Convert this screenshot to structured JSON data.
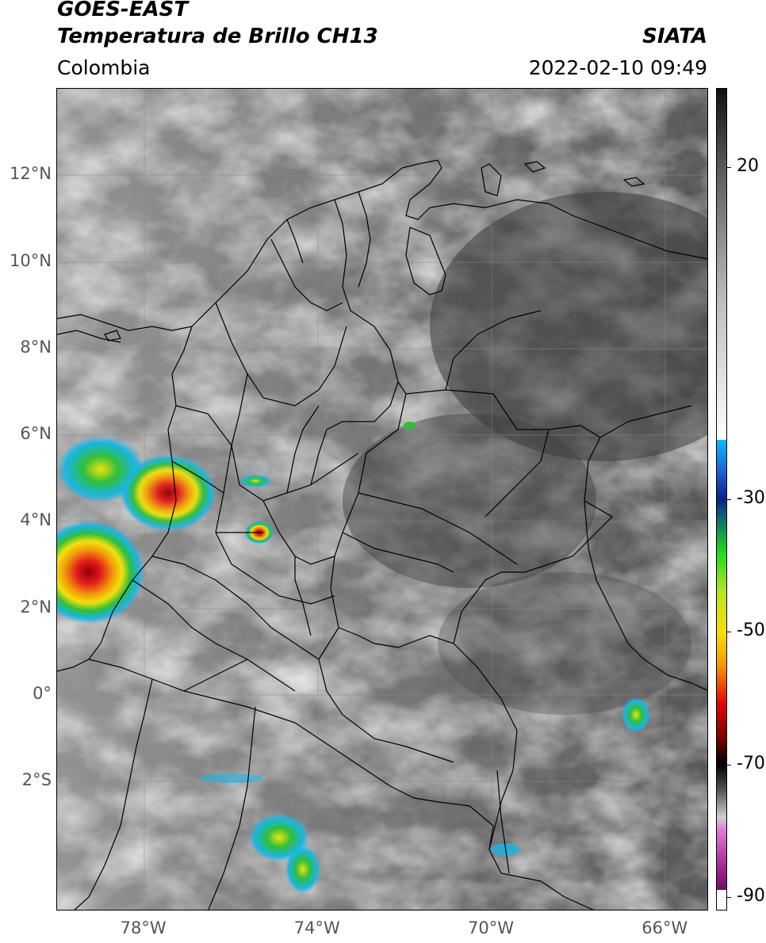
{
  "header": {
    "satellite": "GOES-EAST",
    "product": "Temperatura de Brillo CH13",
    "region": "Colombia",
    "organization": "SIATA",
    "datetime": "2022-02-10 09:49"
  },
  "map": {
    "lon_range": [
      -80,
      -65
    ],
    "lat_range": [
      -5,
      14
    ],
    "lat_ticks": [
      {
        "value": 12,
        "label": "12°N"
      },
      {
        "value": 10,
        "label": "10°N"
      },
      {
        "value": 8,
        "label": "8°N"
      },
      {
        "value": 6,
        "label": "6°N"
      },
      {
        "value": 4,
        "label": "4°N"
      },
      {
        "value": 2,
        "label": "2°N"
      },
      {
        "value": 0,
        "label": "0°"
      },
      {
        "value": -2,
        "label": "2°S"
      }
    ],
    "lon_ticks": [
      {
        "value": -78,
        "label": "78°W"
      },
      {
        "value": -74,
        "label": "74°W"
      },
      {
        "value": -70,
        "label": "70°W"
      },
      {
        "value": -66,
        "label": "66°W"
      }
    ],
    "gridlines": true
  },
  "colorbar": {
    "range": [
      -92,
      32
    ],
    "ticks": [
      {
        "value": 20,
        "label": "20"
      },
      {
        "value": -30,
        "label": "-30"
      },
      {
        "value": -50,
        "label": "-50"
      },
      {
        "value": -70,
        "label": "-70"
      },
      {
        "value": -90,
        "label": "-90"
      }
    ]
  },
  "colors": {
    "storm_core": "#8b0000",
    "storm_red": "#e41a1c",
    "storm_yellow": "#f2e10a",
    "storm_green": "#2fbf3a",
    "storm_cyan": "#19b5e6",
    "land_dark": "#4d4d4d",
    "land_light": "#b8b8b8"
  }
}
